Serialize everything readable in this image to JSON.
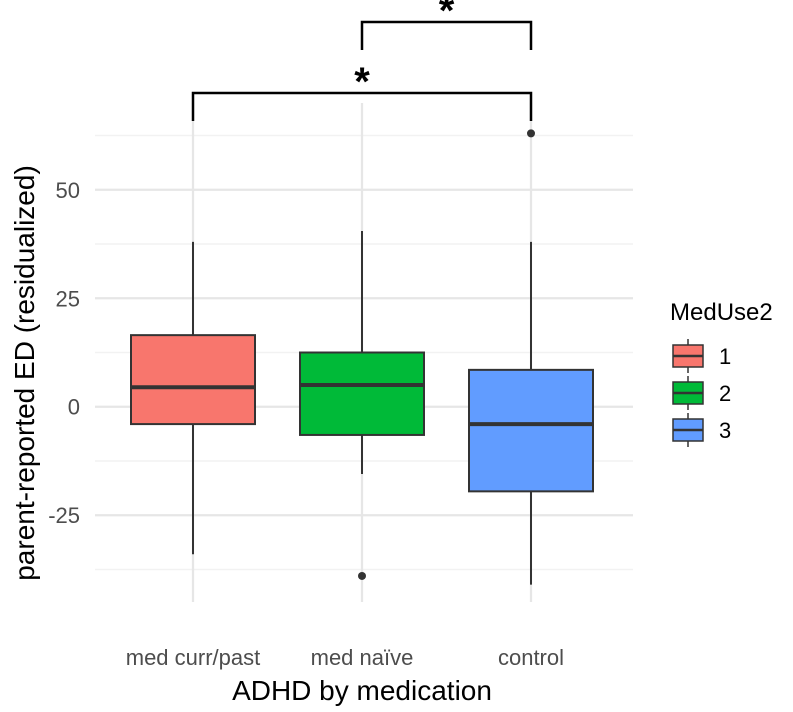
{
  "chart_data": {
    "type": "boxplot",
    "xlabel": "ADHD by medication",
    "ylabel": "parent-reported ED (residualized)",
    "ylim": [
      -45,
      70
    ],
    "yticks": [
      -25,
      0,
      25,
      50
    ],
    "ytick_labels": [
      "-25",
      "0",
      "25",
      "50"
    ],
    "grid": true,
    "categories": [
      "med curr/past",
      "med naïve",
      "control"
    ],
    "boxes": [
      {
        "group": "1",
        "whisker_low": -34,
        "q1": -4,
        "median": 4.5,
        "q3": 16.5,
        "whisker_high": 38,
        "outliers": []
      },
      {
        "group": "2",
        "whisker_low": -15.5,
        "q1": -6.5,
        "median": 5,
        "q3": 12.5,
        "whisker_high": 40.5,
        "outliers": [
          -39
        ]
      },
      {
        "group": "3",
        "whisker_low": -41,
        "q1": -19.5,
        "median": -4,
        "q3": 8.5,
        "whisker_high": 38,
        "outliers": [
          63
        ]
      }
    ],
    "legend": {
      "title": "MedUse2",
      "position": "right",
      "entries": [
        {
          "label": "1",
          "color": "#F8766D"
        },
        {
          "label": "2",
          "color": "#00BA38"
        },
        {
          "label": "3",
          "color": "#619CFF"
        }
      ]
    },
    "significance": [
      {
        "from": 1,
        "to": 2,
        "label": "*"
      },
      {
        "from": 0,
        "to": 2,
        "label": "*"
      }
    ]
  }
}
